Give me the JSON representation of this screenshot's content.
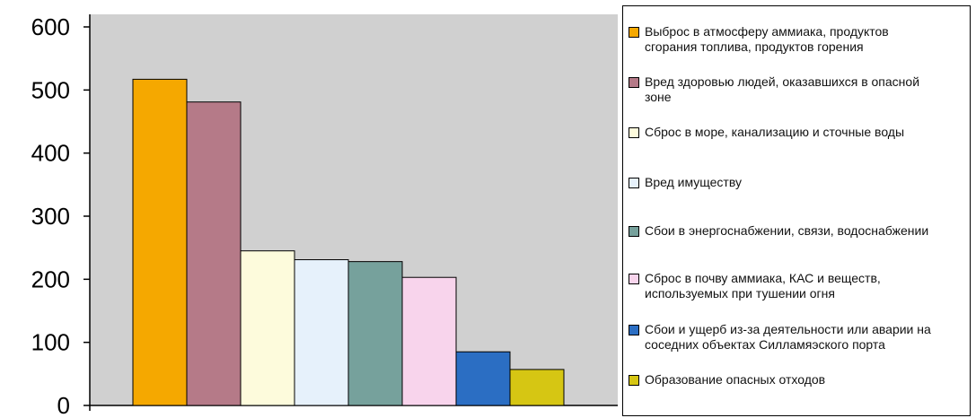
{
  "chart_data": {
    "type": "bar",
    "title": "",
    "xlabel": "",
    "ylabel": "",
    "ylim": [
      0,
      600
    ],
    "yticks": [
      0,
      100,
      200,
      300,
      400,
      500,
      600
    ],
    "grid": false,
    "legend_position": "right",
    "series": [
      {
        "name": "Выброс  в атмосферу аммиака, продуктов сгорания топлива, продуктов горения",
        "value": 517,
        "color": "#f5a800"
      },
      {
        "name": "Вред здоровью людей, оказавшихся  в опасной зоне",
        "value": 481,
        "color": "#b57a88"
      },
      {
        "name": "Сброс в море, канализацию и сточные воды",
        "value": 245,
        "color": "#fdfbdc"
      },
      {
        "name": "Вред имуществу",
        "value": 231,
        "color": "#e6f1fb"
      },
      {
        "name": "Сбои в энергоснабжении, связи, водоснабжении",
        "value": 228,
        "color": "#76a19c"
      },
      {
        "name": "Сброс в почву аммиака, КАС и веществ, используемых при тушении огня",
        "value": 203,
        "color": "#f8d4ec"
      },
      {
        "name": "Сбои и ущерб из-за деятельности или аварии на соседних объектах Силламяэского порта",
        "value": 85,
        "color": "#2b6ec3"
      },
      {
        "name": "Образование опасных отходов",
        "value": 57,
        "color": "#d6c613"
      }
    ]
  },
  "legend": {
    "items": [
      {
        "label_lines": [
          "Выброс  в атмосферу аммиака, продуктов",
          "сгорания топлива, продуктов горения"
        ]
      },
      {
        "label_lines": [
          "Вред здоровью людей, оказавшихся  в опасной",
          "зоне"
        ]
      },
      {
        "label_lines": [
          "Сброс в море, канализацию и сточные воды"
        ]
      },
      {
        "label_lines": [
          "Вред имуществу"
        ]
      },
      {
        "label_lines": [
          "Сбои в энергоснабжении, связи, водоснабжении"
        ]
      },
      {
        "label_lines": [
          "Сброс в почву аммиака, КАС и веществ,",
          "используемых при тушении огня"
        ]
      },
      {
        "label_lines": [
          "Сбои и ущерб из-за деятельности или аварии на",
          "соседних объектах Силламяэского порта"
        ]
      },
      {
        "label_lines": [
          "Образование опасных отходов"
        ]
      }
    ]
  }
}
